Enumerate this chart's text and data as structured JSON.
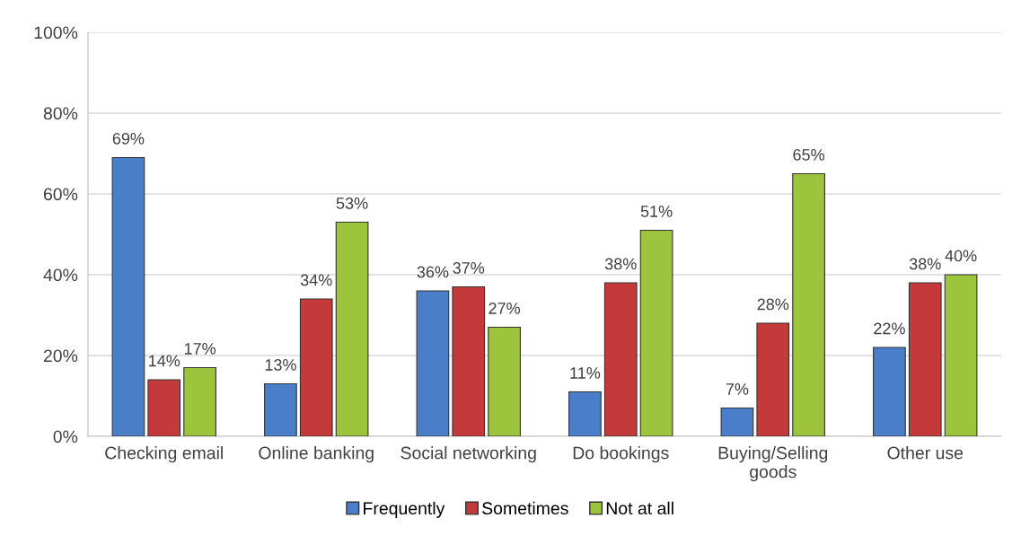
{
  "chart_data": {
    "type": "bar",
    "categories": [
      "Checking email",
      "Online banking",
      "Social networking",
      "Do bookings",
      "Buying/Selling goods",
      "Other use"
    ],
    "series": [
      {
        "name": "Frequently",
        "color": "#4a7ec8",
        "values": [
          69,
          13,
          36,
          11,
          7,
          22
        ],
        "value_labels": [
          "69%",
          "13%",
          "36%",
          "11%",
          "7%",
          "22%"
        ]
      },
      {
        "name": "Sometimes",
        "color": "#c43a3a",
        "values": [
          14,
          34,
          37,
          38,
          28,
          38
        ],
        "value_labels": [
          "14%",
          "34%",
          "37%",
          "38%",
          "28%",
          "38%"
        ]
      },
      {
        "name": "Not at all",
        "color": "#9cc43c",
        "values": [
          17,
          53,
          27,
          51,
          65,
          40
        ],
        "value_labels": [
          "17%",
          "53%",
          "27%",
          "51%",
          "65%",
          "40%"
        ]
      }
    ],
    "ylim": [
      0,
      100
    ],
    "yticks": [
      {
        "value": 0,
        "label": "0%"
      },
      {
        "value": 20,
        "label": "20%"
      },
      {
        "value": 40,
        "label": "40%"
      },
      {
        "value": 60,
        "label": "60%"
      },
      {
        "value": 80,
        "label": "80%"
      },
      {
        "value": 100,
        "label": "100%"
      }
    ],
    "grid": "y",
    "legend": "bottom"
  }
}
